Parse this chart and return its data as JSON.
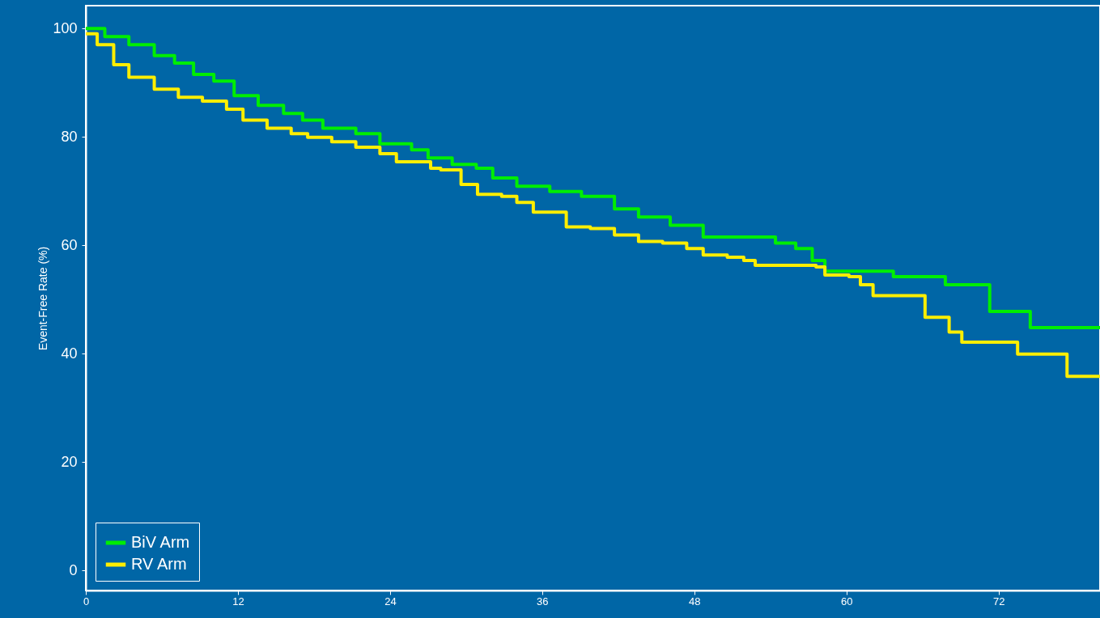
{
  "chart_data": {
    "type": "step",
    "ylabel": "Event-Free Rate (%)",
    "xlim": [
      0,
      80
    ],
    "ylim": [
      -3.7,
      104.2
    ],
    "xticks": [
      0,
      12,
      24,
      36,
      48,
      60,
      72
    ],
    "yticks": [
      0,
      20,
      40,
      60,
      80,
      100
    ],
    "grid": false,
    "legend": "bottom left",
    "line_style": "solid",
    "marker": "none",
    "series": [
      {
        "name": "BiV Arm",
        "color": "#00ee00",
        "x": [
          0,
          1.5,
          3.4,
          5.4,
          7,
          8.5,
          10.1,
          11.7,
          13.6,
          15.6,
          17.1,
          18.7,
          21.3,
          23.2,
          25.7,
          27,
          28.9,
          30.8,
          32.1,
          34,
          36.6,
          39.1,
          41.7,
          43.6,
          46.1,
          48.7,
          52.5,
          54.4,
          56,
          57.3,
          58.3,
          63.7,
          67.8,
          71.3,
          74.5,
          80
        ],
        "values": [
          100,
          98.5,
          97,
          95,
          93.6,
          91.5,
          90.3,
          87.6,
          85.8,
          84.3,
          83.1,
          81.6,
          80.6,
          78.7,
          77.6,
          76.1,
          74.9,
          74.2,
          72.4,
          70.9,
          69.9,
          69,
          66.7,
          65.2,
          63.7,
          61.5,
          61.5,
          60.4,
          59.4,
          57.2,
          55.2,
          54.2,
          52.7,
          47.8,
          44.8,
          44.8
        ]
      },
      {
        "name": "RV Arm",
        "color": "#ffee00",
        "x": [
          0,
          0.9,
          2.2,
          3.4,
          5.4,
          7.3,
          9.2,
          11.1,
          12.4,
          14.3,
          16.2,
          17.5,
          19.4,
          21.3,
          23.2,
          24.5,
          27.2,
          28,
          29.6,
          30.9,
          32.8,
          34,
          35.3,
          37.9,
          39.8,
          41.7,
          43.6,
          45.5,
          47.4,
          48.7,
          50.6,
          51.9,
          52.8,
          57.6,
          58.3,
          60.2,
          61.1,
          62.1,
          66.2,
          68.1,
          69.1,
          73.5,
          77.4,
          80
        ],
        "values": [
          99,
          97,
          93.3,
          91,
          88.8,
          87.3,
          86.6,
          85.1,
          83.1,
          81.6,
          80.6,
          79.9,
          79.1,
          78.1,
          76.9,
          75.4,
          74.2,
          73.9,
          71.2,
          69.4,
          69,
          67.9,
          66.1,
          63.4,
          63.1,
          61.9,
          60.7,
          60.4,
          59.4,
          58.2,
          57.8,
          57.2,
          56.3,
          56,
          54.5,
          54.2,
          52.7,
          50.7,
          46.7,
          44,
          42.1,
          39.9,
          35.8,
          35.8
        ]
      }
    ]
  }
}
